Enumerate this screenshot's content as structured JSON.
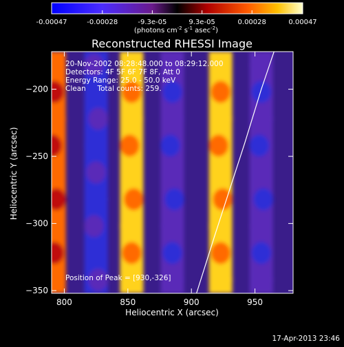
{
  "colorbar": {
    "tick_labels": [
      "-0.00047",
      "-0.00028",
      "-9.3e-05",
      "9.3e-05",
      "0.00028",
      "0.00047"
    ],
    "tick_values": [
      -0.00047,
      -0.00028,
      -9.3e-05,
      9.3e-05,
      0.00028,
      0.00047
    ],
    "range": [
      -0.00047,
      0.00047
    ],
    "units": "(photons cm",
    "units_exp1": "-2",
    "units_mid": " s",
    "units_exp2": "-1",
    "units_mid2": " asec",
    "units_exp3": "-2",
    "units_close": ")"
  },
  "chart_data": {
    "type": "heatmap",
    "title": "Reconstructed RHESSI Image",
    "xlabel": "Heliocentric X (arcsec)",
    "ylabel": "Heliocentric Y (arcsec)",
    "xlim": [
      790,
      980
    ],
    "ylim": [
      -352,
      -172
    ],
    "x_ticks": [
      800,
      850,
      900,
      950
    ],
    "y_ticks": [
      -200,
      -250,
      -300,
      -350
    ],
    "x_tick_labels": [
      "800",
      "850",
      "900",
      "950"
    ],
    "y_tick_labels": [
      "−200",
      "−250",
      "−300",
      "−350"
    ],
    "stripes": [
      {
        "x": 792,
        "level": 0.72
      },
      {
        "x": 825,
        "level": 0.12
      },
      {
        "x": 853,
        "level": 0.92
      },
      {
        "x": 885,
        "level": 0.14
      },
      {
        "x": 923,
        "level": 0.97
      },
      {
        "x": 955,
        "level": 0.15
      }
    ],
    "peak": [
      930,
      -326
    ],
    "limb_curve": [
      [
        965,
        -172
      ],
      [
        955,
        -200
      ],
      [
        942,
        -240
      ],
      [
        930,
        -275
      ],
      [
        918,
        -310
      ],
      [
        904,
        -352
      ]
    ],
    "annotations": [
      "20-Nov-2002 08:28:48.000 to 08:29:12.000",
      "Detectors: 4F 5F 6F 7F 8F, Att 0",
      "Energy Range: 25.0 - 50.0 keV",
      "Clean     Total counts: 259."
    ],
    "peak_label": "Position of Peak = [930,-326]"
  },
  "footer": {
    "date": "17-Apr-2013 23:46"
  }
}
